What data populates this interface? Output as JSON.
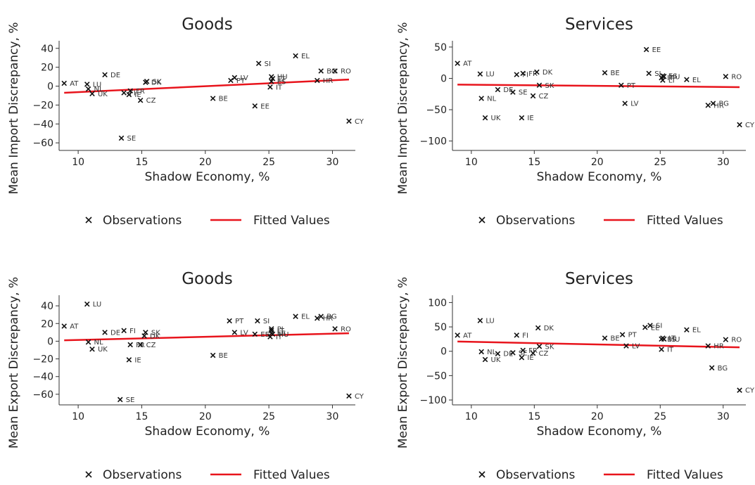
{
  "legend": {
    "observations": "Observations",
    "fitted": "Fitted Values"
  },
  "colors": {
    "marker": "#111111",
    "fit": "#e8141c"
  },
  "chart_data": [
    {
      "type": "scatter",
      "title": "Goods",
      "xlabel": "Shadow Economy, %",
      "ylabel": "Mean Import Discrepancy, %",
      "xlim": [
        8.5,
        31.8
      ],
      "ylim": [
        -68,
        48
      ],
      "xticks": [
        10,
        15,
        20,
        25,
        30
      ],
      "yticks": [
        40,
        20,
        0,
        -20,
        -40,
        -60
      ],
      "points": [
        {
          "label": "AT",
          "x": 8.9,
          "y": 3
        },
        {
          "label": "LU",
          "x": 10.7,
          "y": 2
        },
        {
          "label": "NL",
          "x": 10.8,
          "y": -3
        },
        {
          "label": "UK",
          "x": 11.1,
          "y": -8
        },
        {
          "label": "DE",
          "x": 12.1,
          "y": 12
        },
        {
          "label": "SE",
          "x": 13.4,
          "y": -55
        },
        {
          "label": "FI",
          "x": 13.6,
          "y": -7
        },
        {
          "label": "FR",
          "x": 14.1,
          "y": -5
        },
        {
          "label": "IE",
          "x": 14.0,
          "y": -9
        },
        {
          "label": "CZ",
          "x": 14.9,
          "y": -15
        },
        {
          "label": "DK",
          "x": 15.3,
          "y": 4
        },
        {
          "label": "SK",
          "x": 15.4,
          "y": 5
        },
        {
          "label": "BE",
          "x": 20.6,
          "y": -13
        },
        {
          "label": "PT",
          "x": 22.0,
          "y": 6
        },
        {
          "label": "LV",
          "x": 22.3,
          "y": 9
        },
        {
          "label": "EE",
          "x": 23.9,
          "y": -21
        },
        {
          "label": "SI",
          "x": 24.2,
          "y": 24
        },
        {
          "label": "IT",
          "x": 25.1,
          "y": -1
        },
        {
          "label": "ES",
          "x": 25.2,
          "y": 5
        },
        {
          "label": "LT",
          "x": 25.3,
          "y": 8
        },
        {
          "label": "HU",
          "x": 25.2,
          "y": 10
        },
        {
          "label": "EL",
          "x": 27.1,
          "y": 32
        },
        {
          "label": "HR",
          "x": 28.8,
          "y": 6
        },
        {
          "label": "BG",
          "x": 29.1,
          "y": 16
        },
        {
          "label": "RO",
          "x": 30.2,
          "y": 16
        },
        {
          "label": "CY",
          "x": 31.3,
          "y": -37
        }
      ],
      "fit": {
        "x": [
          8.9,
          31.3
        ],
        "y": [
          -7,
          7
        ]
      }
    },
    {
      "type": "scatter",
      "title": "Services",
      "xlabel": "Shadow Economy, %",
      "ylabel": "Mean Import Discrepancy, %",
      "xlim": [
        8.5,
        31.8
      ],
      "ylim": [
        -115,
        60
      ],
      "xticks": [
        10,
        15,
        20,
        25,
        30
      ],
      "yticks": [
        50,
        0,
        -50,
        -100
      ],
      "points": [
        {
          "label": "AT",
          "x": 8.9,
          "y": 24
        },
        {
          "label": "LU",
          "x": 10.7,
          "y": 7
        },
        {
          "label": "NL",
          "x": 10.8,
          "y": -32
        },
        {
          "label": "UK",
          "x": 11.1,
          "y": -63
        },
        {
          "label": "DE",
          "x": 12.1,
          "y": -18
        },
        {
          "label": "SE",
          "x": 13.3,
          "y": -22
        },
        {
          "label": "FI",
          "x": 13.6,
          "y": 6
        },
        {
          "label": "FR",
          "x": 14.1,
          "y": 8
        },
        {
          "label": "IE",
          "x": 14.0,
          "y": -63
        },
        {
          "label": "CZ",
          "x": 14.9,
          "y": -28
        },
        {
          "label": "DK",
          "x": 15.2,
          "y": 10
        },
        {
          "label": "SK",
          "x": 15.4,
          "y": -11
        },
        {
          "label": "BE",
          "x": 20.6,
          "y": 9
        },
        {
          "label": "PT",
          "x": 21.9,
          "y": -11
        },
        {
          "label": "LV",
          "x": 22.2,
          "y": -40
        },
        {
          "label": "EE",
          "x": 23.9,
          "y": 46
        },
        {
          "label": "SI",
          "x": 24.1,
          "y": 8
        },
        {
          "label": "IT",
          "x": 25.1,
          "y": 1
        },
        {
          "label": "ES",
          "x": 25.2,
          "y": 4
        },
        {
          "label": "LT",
          "x": 25.2,
          "y": -3
        },
        {
          "label": "HU",
          "x": 25.3,
          "y": 3
        },
        {
          "label": "EL",
          "x": 27.1,
          "y": -2
        },
        {
          "label": "HR",
          "x": 28.8,
          "y": -43
        },
        {
          "label": "BG",
          "x": 29.2,
          "y": -40
        },
        {
          "label": "RO",
          "x": 30.2,
          "y": 3
        },
        {
          "label": "CY",
          "x": 31.3,
          "y": -74
        }
      ],
      "fit": {
        "x": [
          8.9,
          31.3
        ],
        "y": [
          -10,
          -14
        ]
      }
    },
    {
      "type": "scatter",
      "title": "Goods",
      "xlabel": "Shadow Economy, %",
      "ylabel": "Mean Export Discrepancy, %",
      "xlim": [
        8.5,
        31.8
      ],
      "ylim": [
        -72,
        52
      ],
      "xticks": [
        10,
        15,
        20,
        25,
        30
      ],
      "yticks": [
        40,
        20,
        0,
        -20,
        -40,
        -60
      ],
      "points": [
        {
          "label": "AT",
          "x": 8.9,
          "y": 17
        },
        {
          "label": "LU",
          "x": 10.7,
          "y": 42
        },
        {
          "label": "NL",
          "x": 10.8,
          "y": -1
        },
        {
          "label": "UK",
          "x": 11.1,
          "y": -9
        },
        {
          "label": "DE",
          "x": 12.1,
          "y": 10
        },
        {
          "label": "SE",
          "x": 13.3,
          "y": -66
        },
        {
          "label": "FI",
          "x": 13.6,
          "y": 12
        },
        {
          "label": "FR",
          "x": 14.1,
          "y": -4
        },
        {
          "label": "IE",
          "x": 14.0,
          "y": -21
        },
        {
          "label": "CZ",
          "x": 14.9,
          "y": -4
        },
        {
          "label": "DK",
          "x": 15.2,
          "y": 6
        },
        {
          "label": "SK",
          "x": 15.3,
          "y": 10
        },
        {
          "label": "BE",
          "x": 20.6,
          "y": -16
        },
        {
          "label": "PT",
          "x": 21.9,
          "y": 23
        },
        {
          "label": "LV",
          "x": 22.3,
          "y": 10
        },
        {
          "label": "EE",
          "x": 23.9,
          "y": 8
        },
        {
          "label": "SI",
          "x": 24.1,
          "y": 23
        },
        {
          "label": "IT",
          "x": 25.1,
          "y": 5
        },
        {
          "label": "ES",
          "x": 25.2,
          "y": 9
        },
        {
          "label": "PL",
          "x": 25.2,
          "y": 14
        },
        {
          "label": "LT",
          "x": 25.2,
          "y": 12
        },
        {
          "label": "HU",
          "x": 25.3,
          "y": 8
        },
        {
          "label": "EL",
          "x": 27.1,
          "y": 28
        },
        {
          "label": "HR",
          "x": 28.8,
          "y": 26
        },
        {
          "label": "BG",
          "x": 29.1,
          "y": 28
        },
        {
          "label": "RO",
          "x": 30.2,
          "y": 14
        },
        {
          "label": "CY",
          "x": 31.3,
          "y": -62
        }
      ],
      "fit": {
        "x": [
          8.9,
          31.3
        ],
        "y": [
          1,
          9
        ]
      }
    },
    {
      "type": "scatter",
      "title": "Services",
      "xlabel": "Shadow Economy, %",
      "ylabel": "Mean Export Discrepancy, %",
      "xlim": [
        8.5,
        31.8
      ],
      "ylim": [
        -110,
        115
      ],
      "xticks": [
        10,
        15,
        20,
        25,
        30
      ],
      "yticks": [
        100,
        50,
        0,
        -50,
        -100
      ],
      "points": [
        {
          "label": "AT",
          "x": 8.9,
          "y": 33
        },
        {
          "label": "LU",
          "x": 10.7,
          "y": 63
        },
        {
          "label": "NL",
          "x": 10.8,
          "y": -1
        },
        {
          "label": "UK",
          "x": 11.1,
          "y": -17
        },
        {
          "label": "DE",
          "x": 12.1,
          "y": -5
        },
        {
          "label": "SE",
          "x": 13.3,
          "y": -3
        },
        {
          "label": "FI",
          "x": 13.6,
          "y": 33
        },
        {
          "label": "FR",
          "x": 14.1,
          "y": 2
        },
        {
          "label": "IE",
          "x": 14.0,
          "y": -13
        },
        {
          "label": "CZ",
          "x": 14.9,
          "y": -4
        },
        {
          "label": "DK",
          "x": 15.3,
          "y": 48
        },
        {
          "label": "SK",
          "x": 15.4,
          "y": 10
        },
        {
          "label": "BE",
          "x": 20.6,
          "y": 27
        },
        {
          "label": "PT",
          "x": 22.0,
          "y": 34
        },
        {
          "label": "LV",
          "x": 22.3,
          "y": 11
        },
        {
          "label": "EE",
          "x": 23.8,
          "y": 49
        },
        {
          "label": "SI",
          "x": 24.2,
          "y": 53
        },
        {
          "label": "IT",
          "x": 25.1,
          "y": 4
        },
        {
          "label": "ES",
          "x": 25.1,
          "y": 25
        },
        {
          "label": "LT",
          "x": 25.2,
          "y": 27
        },
        {
          "label": "HU",
          "x": 25.3,
          "y": 25
        },
        {
          "label": "EL",
          "x": 27.1,
          "y": 44
        },
        {
          "label": "HR",
          "x": 28.8,
          "y": 11
        },
        {
          "label": "BG",
          "x": 29.1,
          "y": -34
        },
        {
          "label": "RO",
          "x": 30.2,
          "y": 24
        },
        {
          "label": "CY",
          "x": 31.3,
          "y": -80
        }
      ],
      "fit": {
        "x": [
          8.9,
          31.3
        ],
        "y": [
          20,
          8
        ]
      }
    }
  ]
}
